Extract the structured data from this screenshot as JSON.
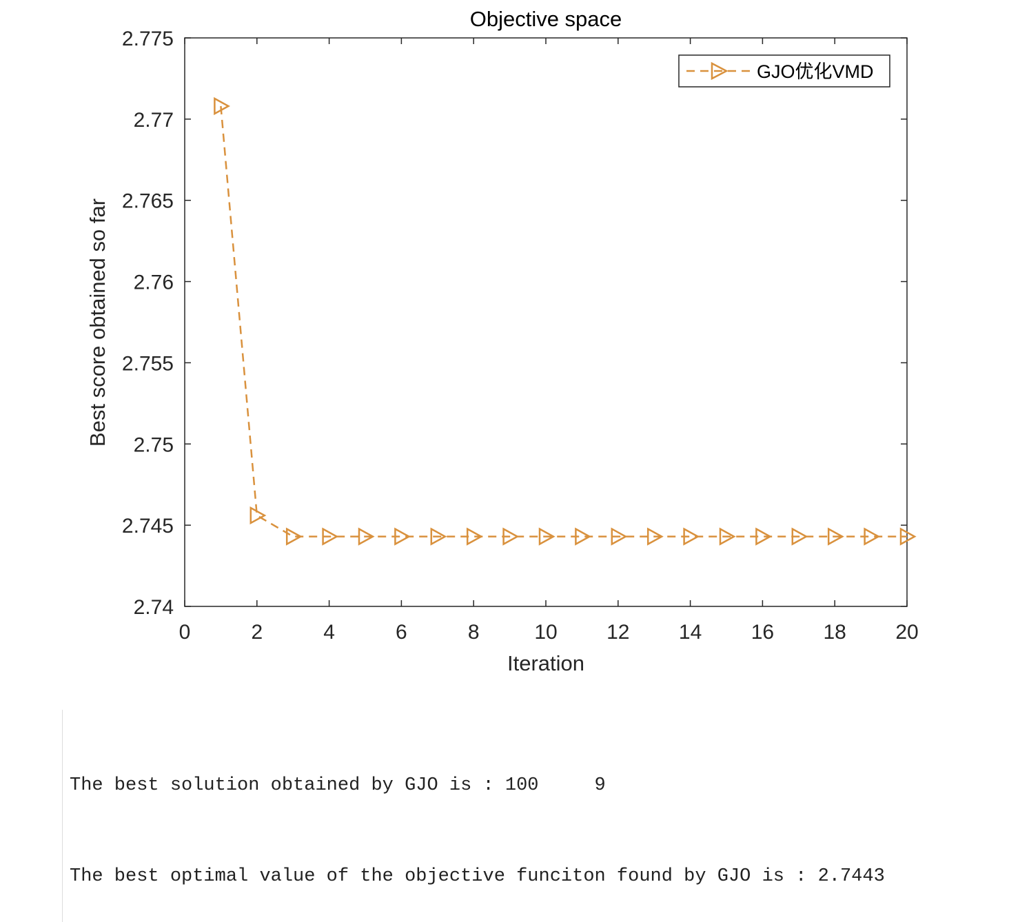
{
  "chart_data": {
    "type": "line",
    "title": "Objective space",
    "xlabel": "Iteration",
    "ylabel": "Best score obtained so far",
    "xlim": [
      0,
      20
    ],
    "ylim": [
      2.74,
      2.775
    ],
    "x_ticks": [
      0,
      2,
      4,
      6,
      8,
      10,
      12,
      14,
      16,
      18,
      20
    ],
    "x_tick_labels": [
      "0",
      "2",
      "4",
      "6",
      "8",
      "10",
      "12",
      "14",
      "16",
      "18",
      "20"
    ],
    "y_ticks": [
      2.74,
      2.745,
      2.75,
      2.755,
      2.76,
      2.765,
      2.77,
      2.775
    ],
    "y_tick_labels": [
      "2.74",
      "2.745",
      "2.75",
      "2.755",
      "2.76",
      "2.765",
      "2.77",
      "2.775"
    ],
    "grid": false,
    "legend_position": "top-right",
    "series": [
      {
        "name": "GJO优化VMD",
        "color": "#D9913D",
        "line_style": "dashed",
        "marker": "right-triangle",
        "x": [
          1,
          2,
          3,
          4,
          5,
          6,
          7,
          8,
          9,
          10,
          11,
          12,
          13,
          14,
          15,
          16,
          17,
          18,
          19,
          20
        ],
        "values": [
          2.7708,
          2.7456,
          2.7443,
          2.7443,
          2.7443,
          2.7443,
          2.7443,
          2.7443,
          2.7443,
          2.7443,
          2.7443,
          2.7443,
          2.7443,
          2.7443,
          2.7443,
          2.7443,
          2.7443,
          2.7443,
          2.7443,
          2.7443
        ]
      }
    ]
  },
  "console": {
    "line1": "The best solution obtained by GJO is : 100     9",
    "line2": "The best optimal value of the objective funciton found by GJO is : 2.7443"
  }
}
